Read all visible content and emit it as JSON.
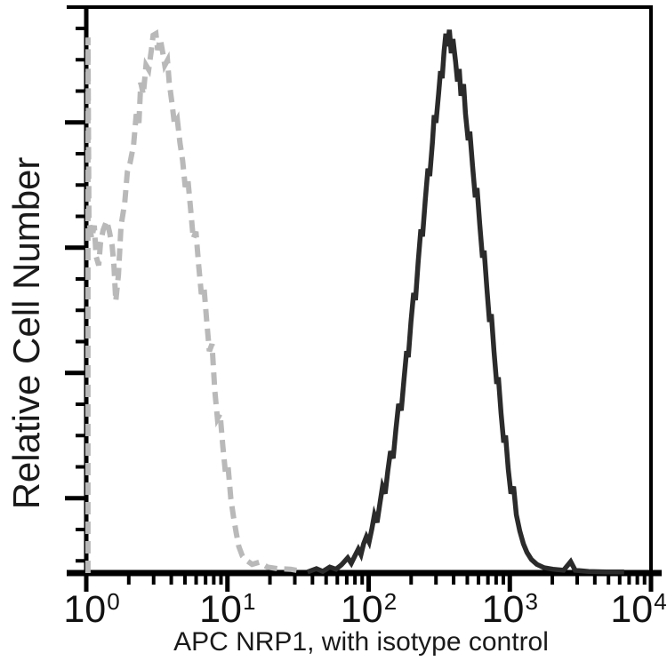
{
  "figure": {
    "kind": "flow-cytometry-histogram-overlay",
    "background_color": "#ffffff",
    "axis_color": "#000000"
  },
  "chart_data": {
    "type": "line",
    "title": "",
    "xlabel": "APC NRP1, with isotype control",
    "ylabel": "Relative Cell Number",
    "x_scale": "log10",
    "xlim": [
      1,
      10000
    ],
    "ylim": [
      0,
      1
    ],
    "grid": false,
    "legend": "none",
    "x_ticks": [
      {
        "base": "10",
        "exp": "0",
        "log10": 0
      },
      {
        "base": "10",
        "exp": "1",
        "log10": 1
      },
      {
        "base": "10",
        "exp": "2",
        "log10": 2
      },
      {
        "base": "10",
        "exp": "3",
        "log10": 3
      },
      {
        "base": "10",
        "exp": "4",
        "log10": 4
      }
    ],
    "x_minor_ticks_per_decade": [
      2,
      3,
      4,
      5,
      6,
      7,
      8,
      9
    ],
    "y_ticks": {
      "count": 18,
      "major_indices": [
        3,
        7,
        11,
        15
      ],
      "labels": "none"
    },
    "series": [
      {
        "name": "isotype control",
        "style": "dashed",
        "color": "#b9b9b9",
        "stroke_width": 6,
        "dash": "14 8",
        "points_log10x_relheight": [
          [
            0.012,
            0.0
          ],
          [
            0.012,
            0.985
          ],
          [
            0.019,
            0.648
          ],
          [
            0.038,
            0.615
          ],
          [
            0.057,
            0.639
          ],
          [
            0.07,
            0.582
          ],
          [
            0.088,
            0.566
          ],
          [
            0.101,
            0.607
          ],
          [
            0.12,
            0.631
          ],
          [
            0.145,
            0.648
          ],
          [
            0.164,
            0.628
          ],
          [
            0.183,
            0.602
          ],
          [
            0.196,
            0.566
          ],
          [
            0.209,
            0.5
          ],
          [
            0.228,
            0.549
          ],
          [
            0.246,
            0.639
          ],
          [
            0.272,
            0.68
          ],
          [
            0.291,
            0.738
          ],
          [
            0.31,
            0.754
          ],
          [
            0.335,
            0.787
          ],
          [
            0.354,
            0.844
          ],
          [
            0.373,
            0.828
          ],
          [
            0.386,
            0.902
          ],
          [
            0.404,
            0.88
          ],
          [
            0.423,
            0.934
          ],
          [
            0.442,
            0.926
          ],
          [
            0.461,
            0.962
          ],
          [
            0.474,
            0.989
          ],
          [
            0.493,
            0.992
          ],
          [
            0.506,
            0.962
          ],
          [
            0.525,
            0.982
          ],
          [
            0.543,
            0.955
          ],
          [
            0.556,
            0.934
          ],
          [
            0.575,
            0.943
          ],
          [
            0.588,
            0.902
          ],
          [
            0.607,
            0.864
          ],
          [
            0.625,
            0.825
          ],
          [
            0.645,
            0.834
          ],
          [
            0.663,
            0.792
          ],
          [
            0.682,
            0.759
          ],
          [
            0.701,
            0.71
          ],
          [
            0.72,
            0.723
          ],
          [
            0.739,
            0.67
          ],
          [
            0.758,
            0.615
          ],
          [
            0.777,
            0.628
          ],
          [
            0.796,
            0.566
          ],
          [
            0.815,
            0.513
          ],
          [
            0.834,
            0.525
          ],
          [
            0.853,
            0.464
          ],
          [
            0.872,
            0.408
          ],
          [
            0.891,
            0.421
          ],
          [
            0.91,
            0.336
          ],
          [
            0.929,
            0.284
          ],
          [
            0.948,
            0.293
          ],
          [
            0.967,
            0.234
          ],
          [
            0.986,
            0.185
          ],
          [
            1.005,
            0.195
          ],
          [
            1.024,
            0.136
          ],
          [
            1.043,
            0.103
          ],
          [
            1.062,
            0.074
          ],
          [
            1.08,
            0.049
          ],
          [
            1.106,
            0.031
          ],
          [
            1.137,
            0.023
          ],
          [
            1.175,
            0.016
          ],
          [
            1.226,
            0.02
          ],
          [
            1.283,
            0.011
          ],
          [
            1.359,
            0.008
          ],
          [
            1.447,
            0.007
          ],
          [
            1.536,
            0.003
          ]
        ]
      },
      {
        "name": "APC NRP1",
        "style": "solid",
        "color": "#2b2b2b",
        "stroke_width": 5.5,
        "dash": "",
        "points_log10x_relheight": [
          [
            1.567,
            0.002
          ],
          [
            1.63,
            0.008
          ],
          [
            1.675,
            0.003
          ],
          [
            1.725,
            0.011
          ],
          [
            1.769,
            0.007
          ],
          [
            1.807,
            0.015
          ],
          [
            1.852,
            0.028
          ],
          [
            1.877,
            0.018
          ],
          [
            1.902,
            0.031
          ],
          [
            1.927,
            0.044
          ],
          [
            1.946,
            0.034
          ],
          [
            1.965,
            0.054
          ],
          [
            1.984,
            0.067
          ],
          [
            2.003,
            0.057
          ],
          [
            2.022,
            0.08
          ],
          [
            2.041,
            0.107
          ],
          [
            2.06,
            0.093
          ],
          [
            2.079,
            0.126
          ],
          [
            2.098,
            0.159
          ],
          [
            2.117,
            0.146
          ],
          [
            2.136,
            0.188
          ],
          [
            2.155,
            0.224
          ],
          [
            2.174,
            0.211
          ],
          [
            2.193,
            0.263
          ],
          [
            2.212,
            0.311
          ],
          [
            2.231,
            0.299
          ],
          [
            2.25,
            0.355
          ],
          [
            2.269,
            0.408
          ],
          [
            2.281,
            0.397
          ],
          [
            2.3,
            0.462
          ],
          [
            2.319,
            0.515
          ],
          [
            2.332,
            0.502
          ],
          [
            2.351,
            0.572
          ],
          [
            2.37,
            0.632
          ],
          [
            2.382,
            0.619
          ],
          [
            2.401,
            0.686
          ],
          [
            2.42,
            0.744
          ],
          [
            2.433,
            0.73
          ],
          [
            2.452,
            0.793
          ],
          [
            2.464,
            0.842
          ],
          [
            2.477,
            0.828
          ],
          [
            2.496,
            0.882
          ],
          [
            2.509,
            0.923
          ],
          [
            2.521,
            0.91
          ],
          [
            2.534,
            0.959
          ],
          [
            2.547,
            0.992
          ],
          [
            2.559,
            0.969
          ],
          [
            2.572,
            0.999
          ],
          [
            2.585,
            0.956
          ],
          [
            2.597,
            0.982
          ],
          [
            2.616,
            0.94
          ],
          [
            2.629,
            0.904
          ],
          [
            2.642,
            0.927
          ],
          [
            2.654,
            0.878
          ],
          [
            2.673,
            0.899
          ],
          [
            2.686,
            0.845
          ],
          [
            2.705,
            0.796
          ],
          [
            2.717,
            0.812
          ],
          [
            2.736,
            0.75
          ],
          [
            2.755,
            0.691
          ],
          [
            2.768,
            0.708
          ],
          [
            2.787,
            0.642
          ],
          [
            2.806,
            0.58
          ],
          [
            2.818,
            0.593
          ],
          [
            2.837,
            0.525
          ],
          [
            2.856,
            0.462
          ],
          [
            2.869,
            0.476
          ],
          [
            2.888,
            0.407
          ],
          [
            2.907,
            0.348
          ],
          [
            2.919,
            0.36
          ],
          [
            2.938,
            0.294
          ],
          [
            2.957,
            0.24
          ],
          [
            2.97,
            0.253
          ],
          [
            2.989,
            0.191
          ],
          [
            3.008,
            0.146
          ],
          [
            3.027,
            0.159
          ],
          [
            3.046,
            0.107
          ],
          [
            3.071,
            0.077
          ],
          [
            3.096,
            0.054
          ],
          [
            3.121,
            0.038
          ],
          [
            3.153,
            0.025
          ],
          [
            3.191,
            0.016
          ],
          [
            3.241,
            0.01
          ],
          [
            3.305,
            0.007
          ],
          [
            3.381,
            0.005
          ],
          [
            3.431,
            0.021
          ],
          [
            3.463,
            0.005
          ],
          [
            3.558,
            0.003
          ],
          [
            3.684,
            0.002
          ],
          [
            3.81,
            0.002
          ]
        ]
      }
    ]
  }
}
